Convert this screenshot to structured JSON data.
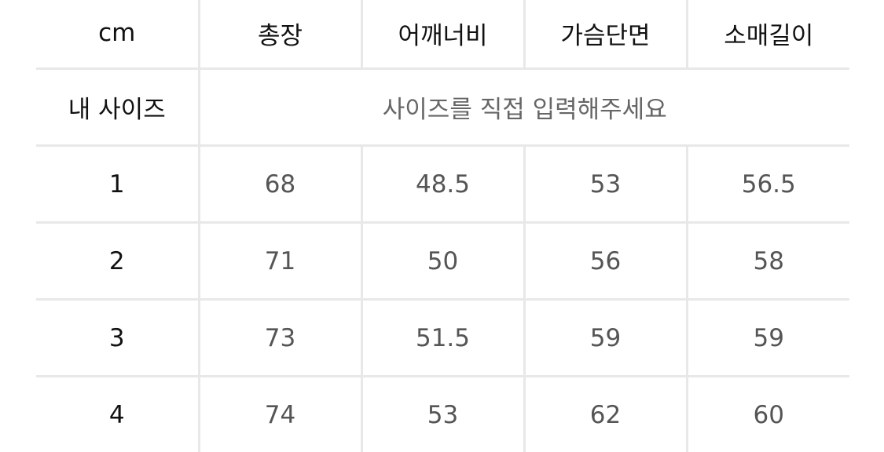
{
  "table": {
    "headers": [
      "cm",
      "총장",
      "어깨너비",
      "가슴단면",
      "소매길이"
    ],
    "my_size": {
      "label": "내 사이즈",
      "placeholder": "사이즈를 직접 입력해주세요"
    },
    "rows": [
      [
        "1",
        "68",
        "48.5",
        "53",
        "56.5"
      ],
      [
        "2",
        "71",
        "50",
        "56",
        "58"
      ],
      [
        "3",
        "73",
        "51.5",
        "59",
        "59"
      ],
      [
        "4",
        "74",
        "53",
        "62",
        "60"
      ]
    ]
  }
}
